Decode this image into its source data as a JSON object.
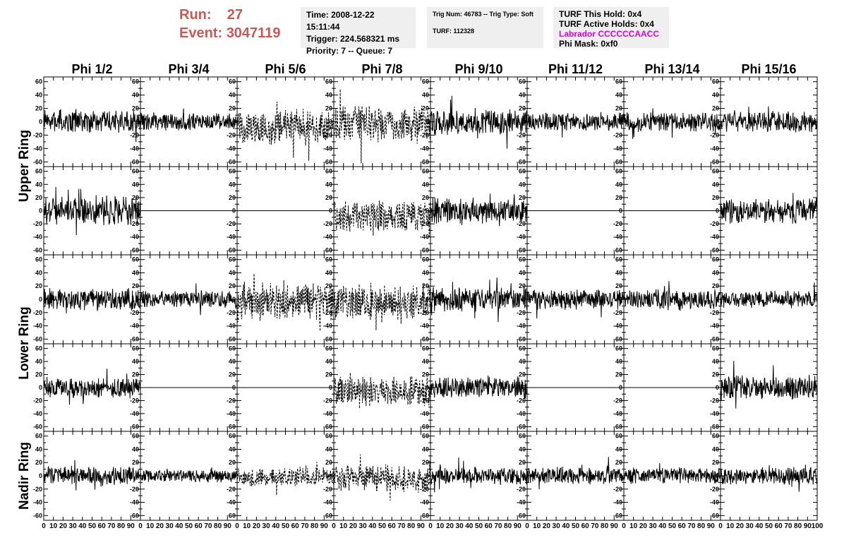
{
  "header": {
    "run_label": "Run:",
    "run_value": "27",
    "event_label": "Event:",
    "event_value": "3047119",
    "time_lines": [
      "Time: 2008-12-22 15:11:44",
      "Trigger: 224.568321 ms",
      "Priority: 7 -- Queue: 7"
    ],
    "trig_line": "Trig Num: 46783 -- Trig Type: Soft",
    "turf_line": "TURF: 112328",
    "turf_hold_lines": [
      "TURF This Hold: 0x4",
      "TURF Active Holds: 0x4"
    ],
    "labrador_line": "Labrador CCCCCCAACC",
    "phi_mask_line": "Phi Mask: 0xf0"
  },
  "colors": {
    "header_red": "#c85a55",
    "labrador_magenta": "#e000e0",
    "trace": "#000000"
  },
  "chart_data": {
    "type": "line",
    "columns": [
      "Phi 1/2",
      "Phi 3/4",
      "Phi 5/6",
      "Phi 7/8",
      "Phi 9/10",
      "Phi 11/12",
      "Phi 13/14",
      "Phi 15/16"
    ],
    "rows": [
      "Upper Ring",
      "Lower Ring",
      "Nadir Ring"
    ],
    "xlim": [
      0,
      100
    ],
    "ylim": [
      -65,
      65
    ],
    "x_ticks": [
      0,
      10,
      20,
      30,
      40,
      50,
      60,
      70,
      80,
      90,
      100
    ],
    "y_ticks": [
      -60,
      -40,
      -20,
      0,
      20,
      40,
      60
    ],
    "x_tick_labels": [
      "0",
      "10",
      "20",
      "30",
      "40",
      "50",
      "60",
      "70",
      "80",
      "90",
      "100"
    ],
    "y_tick_labels": [
      "-60",
      "-40",
      "-20",
      "0",
      "20",
      "40",
      "60"
    ],
    "panels": [
      [
        {
          "style": "solid",
          "amp": 14,
          "offset": 0
        },
        {
          "style": "solid",
          "amp": 11,
          "offset": 0
        },
        {
          "style": "dashed",
          "amp": 22,
          "offset": -8
        },
        {
          "style": "dashed",
          "amp": 24,
          "offset": -5
        },
        {
          "style": "solid",
          "amp": 16,
          "offset": 0
        },
        {
          "style": "solid",
          "amp": 11,
          "offset": 0
        },
        {
          "style": "solid",
          "amp": 12,
          "offset": 0
        },
        {
          "style": "solid",
          "amp": 13,
          "offset": 0
        }
      ],
      [
        {
          "style": "solid",
          "amp": 18,
          "offset": 0
        },
        {
          "style": "flat",
          "amp": 0,
          "offset": 0
        },
        {
          "style": "flat",
          "amp": 0,
          "offset": 0
        },
        {
          "style": "dashed",
          "amp": 20,
          "offset": -8
        },
        {
          "style": "solid",
          "amp": 16,
          "offset": 0
        },
        {
          "style": "flat",
          "amp": 0,
          "offset": 0
        },
        {
          "style": "flat",
          "amp": 0,
          "offset": 0
        },
        {
          "style": "solid",
          "amp": 16,
          "offset": 0
        }
      ],
      [
        {
          "style": "solid",
          "amp": 14,
          "offset": 0
        },
        {
          "style": "solid",
          "amp": 11,
          "offset": 0
        },
        {
          "style": "dashed",
          "amp": 24,
          "offset": -3
        },
        {
          "style": "dashed",
          "amp": 24,
          "offset": -5
        },
        {
          "style": "solid",
          "amp": 16,
          "offset": 0
        },
        {
          "style": "solid",
          "amp": 13,
          "offset": 0
        },
        {
          "style": "solid",
          "amp": 13,
          "offset": 0
        },
        {
          "style": "solid",
          "amp": 11,
          "offset": 0
        }
      ],
      [
        {
          "style": "solid",
          "amp": 13,
          "offset": 0
        },
        {
          "style": "flat",
          "amp": 0,
          "offset": 0
        },
        {
          "style": "flat",
          "amp": 0,
          "offset": 0
        },
        {
          "style": "dashed",
          "amp": 20,
          "offset": -5
        },
        {
          "style": "solid",
          "amp": 14,
          "offset": 0
        },
        {
          "style": "flat",
          "amp": 0,
          "offset": 0
        },
        {
          "style": "flat",
          "amp": 0,
          "offset": 0
        },
        {
          "style": "solid",
          "amp": 16,
          "offset": 0
        }
      ],
      [
        {
          "style": "solid",
          "amp": 12,
          "offset": 0
        },
        {
          "style": "solid",
          "amp": 8,
          "offset": 0
        },
        {
          "style": "dashed",
          "amp": 12,
          "offset": -2
        },
        {
          "style": "dashed",
          "amp": 18,
          "offset": -3
        },
        {
          "style": "solid",
          "amp": 11,
          "offset": 0
        },
        {
          "style": "solid",
          "amp": 11,
          "offset": 0
        },
        {
          "style": "solid",
          "amp": 10,
          "offset": 0
        },
        {
          "style": "solid",
          "amp": 11,
          "offset": 0
        }
      ]
    ]
  }
}
